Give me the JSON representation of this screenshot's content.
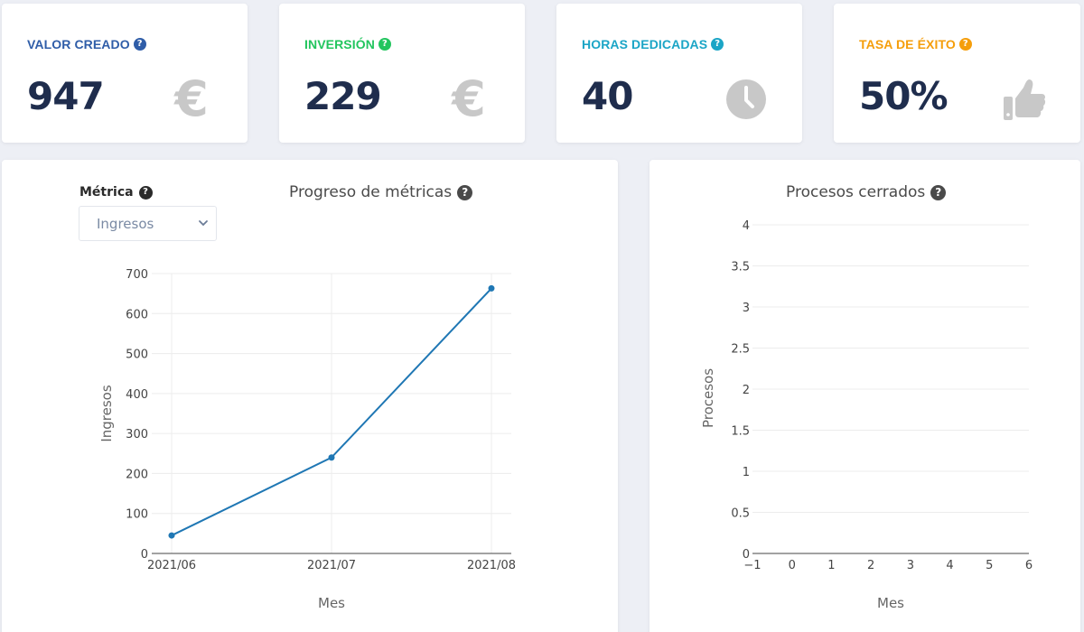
{
  "kpis": [
    {
      "title": "VALOR CREADO",
      "value": "947",
      "color": "#2f5da8",
      "icon": "euro-icon"
    },
    {
      "title": "INVERSIÓN",
      "value": "229",
      "color": "#22c55e",
      "icon": "euro-icon"
    },
    {
      "title": "HORAS DEDICADAS",
      "value": "40",
      "color": "#1ba5c6",
      "icon": "clock-icon"
    },
    {
      "title": "TASA DE ÉXITO",
      "value": "50%",
      "color": "#f59e0b",
      "icon": "thumbs-up-icon"
    }
  ],
  "euro_symbol": "€",
  "help_symbol": "?",
  "metric_panel": {
    "title": "Progreso de métricas",
    "metric_label": "Métrica",
    "select_value": "Ingresos"
  },
  "closed_panel": {
    "title": "Procesos cerrados"
  },
  "chart_data": [
    {
      "type": "line",
      "x": [
        "2021/06",
        "2021/07",
        "2021/08"
      ],
      "series": [
        {
          "values": [
            45,
            240,
            663
          ]
        }
      ],
      "xlabel": "Mes",
      "ylabel": "Ingresos",
      "ylim": [
        0,
        700
      ],
      "yticks": [
        0,
        100,
        200,
        300,
        400,
        500,
        600,
        700
      ],
      "grid": true,
      "color": "#1f77b4"
    },
    {
      "type": "line",
      "x": [],
      "series": [],
      "xlabel": "Mes",
      "ylabel": "Procesos",
      "xlim": [
        -1,
        6
      ],
      "ylim": [
        0,
        4
      ],
      "xticks": [
        "−1",
        "0",
        "1",
        "2",
        "3",
        "4",
        "5",
        "6"
      ],
      "yticks": [
        "0",
        "0.5",
        "1",
        "1.5",
        "2",
        "2.5",
        "3",
        "3.5",
        "4"
      ],
      "grid": true
    }
  ]
}
